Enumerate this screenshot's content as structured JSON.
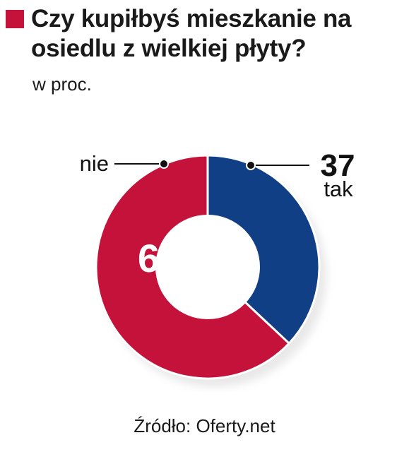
{
  "chart_data": {
    "type": "pie",
    "title": "Czy kupiłbyś mieszkanie na osiedlu z wielkiej płyty?",
    "subtitle": "w proc.",
    "slices": [
      {
        "label": "tak",
        "value": 37,
        "color": "#103f86"
      },
      {
        "label": "nie",
        "value": 63,
        "color": "#c4123a"
      }
    ],
    "source": "Źródło: Oferty.net"
  },
  "colors": {
    "accent": "#c4123a",
    "text": "#1a1a1a"
  }
}
